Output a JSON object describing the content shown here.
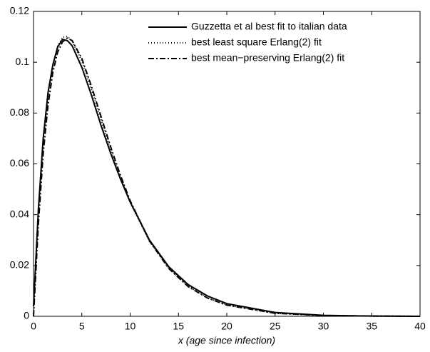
{
  "chart_data": {
    "type": "line",
    "xlabel": "x (age since infection)",
    "x": [
      0,
      0.5,
      1,
      1.5,
      2,
      2.5,
      3,
      3.5,
      4,
      5,
      6,
      7,
      8,
      9,
      10,
      12,
      14,
      16,
      18,
      20,
      25,
      30,
      35,
      40
    ],
    "series": [
      {
        "name": "Guzzetta et al best fit to italian data",
        "color": "#000000",
        "dash": "solid",
        "values": [
          0.004,
          0.042,
          0.07,
          0.088,
          0.099,
          0.106,
          0.109,
          0.1085,
          0.1065,
          0.098,
          0.087,
          0.075,
          0.064,
          0.054,
          0.045,
          0.03,
          0.0195,
          0.0125,
          0.008,
          0.005,
          0.0015,
          0.0004,
          0.0001,
          0
        ]
      },
      {
        "name": "best least square Erlang(2) fit",
        "color": "#000000",
        "dash": "dotted",
        "values": [
          0,
          0.0387,
          0.0667,
          0.0861,
          0.0988,
          0.1063,
          0.1098,
          0.1102,
          0.1084,
          0.1004,
          0.0892,
          0.0772,
          0.0653,
          0.0544,
          0.0448,
          0.0295,
          0.0189,
          0.0119,
          0.0073,
          0.0045,
          0.0012,
          0.0003,
          0.0001,
          0
        ]
      },
      {
        "name": "best mean−preserving Erlang(2) fit",
        "color": "#000000",
        "dash": "dashdot",
        "values": [
          0,
          0.036,
          0.064,
          0.083,
          0.096,
          0.104,
          0.108,
          0.1095,
          0.1085,
          0.1015,
          0.0905,
          0.0785,
          0.0665,
          0.0555,
          0.0455,
          0.0297,
          0.0188,
          0.0117,
          0.0072,
          0.0044,
          0.0012,
          0.0003,
          0.0001,
          0
        ]
      }
    ],
    "xlim": [
      0,
      40
    ],
    "xticks": [
      0,
      5,
      10,
      15,
      20,
      25,
      30,
      35,
      40
    ],
    "ylim": [
      0,
      0.12
    ],
    "yticks": [
      0,
      0.02,
      0.04,
      0.06,
      0.08,
      0.1,
      0.12
    ],
    "legend": "upper right"
  }
}
